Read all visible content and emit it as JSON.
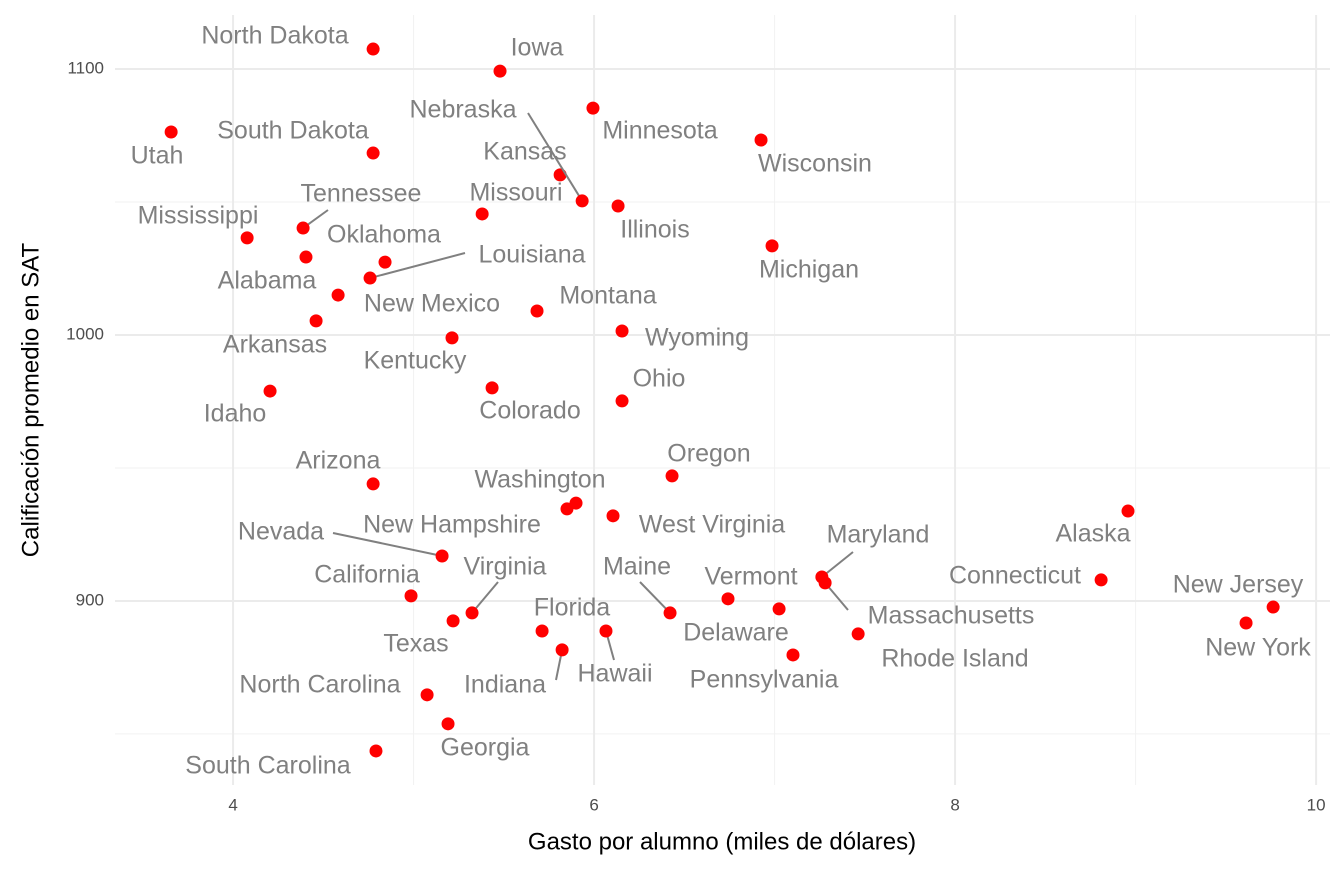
{
  "chart_data": {
    "type": "scatter",
    "x_label": "Gasto por alumno (miles de dólares)",
    "y_label": "Calificación promedio en SAT",
    "xlim": [
      3.346,
      10.077
    ],
    "ylim": [
      830.8,
      1120.3
    ],
    "xticks": [
      4,
      6,
      8,
      10
    ],
    "yticks": [
      900,
      1000,
      1100
    ],
    "xminor": [
      5,
      7,
      9
    ],
    "yminor": [
      850,
      950,
      1050
    ],
    "grid": true,
    "color": "#ff0000",
    "labels": [
      "North Dakota",
      "Iowa",
      "Minnesota",
      "Utah",
      "South Dakota",
      "Wisconsin",
      "Kansas",
      "Nebraska",
      "Missouri",
      "Illinois",
      "Tennessee",
      "Mississippi",
      "Michigan",
      "Alabama",
      "Oklahoma",
      "Louisiana",
      "New Mexico",
      "Arkansas",
      "Montana",
      "Wyoming",
      "Kentucky",
      "Idaho",
      "Colorado",
      "Ohio",
      "Oregon",
      "Arizona",
      "Washington",
      "New Hampshire",
      "West Virginia",
      "Alaska",
      "Nevada",
      "Maryland",
      "Massachusetts",
      "Connecticut",
      "Vermont",
      "Delaware",
      "Pennsylvania",
      "Rhode Island",
      "New Jersey",
      "New York",
      "California",
      "Virginia",
      "Texas",
      "Maine",
      "Florida",
      "Hawaii",
      "Indiana",
      "North Carolina",
      "Georgia",
      "South Carolina"
    ],
    "x": [
      4.776,
      5.479,
      5.994,
      3.657,
      4.776,
      6.925,
      5.812,
      5.934,
      5.38,
      6.133,
      4.388,
      4.078,
      6.986,
      4.404,
      4.842,
      4.759,
      4.582,
      4.46,
      5.684,
      6.155,
      5.213,
      4.205,
      5.435,
      6.155,
      6.432,
      4.776,
      5.9,
      5.85,
      6.105,
      8.958,
      5.158,
      7.262,
      7.28,
      8.809,
      7.025,
      6.742,
      7.102,
      7.463,
      9.762,
      9.612,
      4.986,
      5.324,
      5.219,
      6.421,
      5.712,
      6.066,
      5.823,
      5.075,
      5.191,
      4.792
    ],
    "values": [
      1107.5,
      1099.2,
      1085.3,
      1076.3,
      1068.4,
      1073.3,
      1060.2,
      1050.4,
      1045.5,
      1048.5,
      1040.2,
      1036.5,
      1033.5,
      1029.3,
      1027.4,
      1021.4,
      1015.0,
      1005.3,
      1009.0,
      1001.5,
      998.9,
      978.9,
      980.1,
      975.2,
      947.0,
      944.0,
      936.8,
      934.6,
      932.0,
      933.8,
      916.9,
      909.0,
      906.8,
      907.9,
      897.0,
      900.8,
      879.7,
      887.6,
      897.7,
      891.7,
      901.9,
      895.5,
      892.5,
      895.5,
      888.7,
      888.7,
      881.6,
      864.7,
      853.8,
      843.6
    ]
  }
}
